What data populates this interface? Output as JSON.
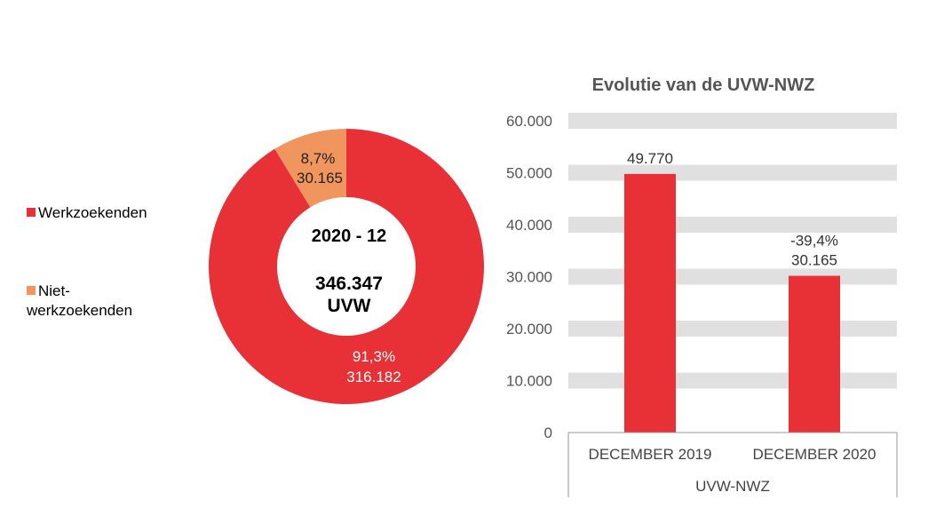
{
  "chart_data": [
    {
      "type": "pie",
      "variant": "donut",
      "center_label": {
        "period": "2020 - 12",
        "total": "346.347",
        "unit": "UVW"
      },
      "legend_placement": "left",
      "slices": [
        {
          "name": "Werkzoekenden",
          "value": 316182,
          "value_label": "316.182",
          "percent_label": "91,3%",
          "color": "#E73137"
        },
        {
          "name": "Niet-werkzoekenden",
          "value": 30165,
          "value_label": "30.165",
          "percent_label": "8,7%",
          "color": "#F0955E"
        }
      ]
    },
    {
      "type": "bar",
      "title": "Evolutie van de UVW-NWZ",
      "categories": [
        "DECEMBER 2019",
        "DECEMBER 2020"
      ],
      "group_label": "UVW-NWZ",
      "values": [
        49770,
        30165
      ],
      "data_labels": [
        "49.770",
        "30.165"
      ],
      "change_labels": [
        "",
        "-39,4%"
      ],
      "ylim": [
        0,
        60000
      ],
      "yticks": [
        "0",
        "10.000",
        "20.000",
        "30.000",
        "40.000",
        "50.000",
        "60.000"
      ],
      "grid": true,
      "bar_color": "#E73137",
      "grid_color": "#E0E0E0"
    }
  ]
}
